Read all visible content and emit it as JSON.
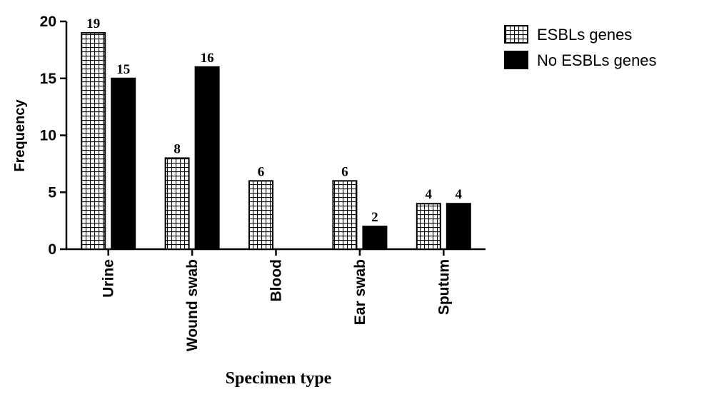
{
  "chart_data": {
    "type": "bar",
    "title": "",
    "xlabel": "Specimen type",
    "ylabel": "Frequency",
    "ylim": [
      0,
      20
    ],
    "yticks": [
      0,
      5,
      10,
      15,
      20
    ],
    "categories": [
      "Urine",
      "Wound swab",
      "Blood",
      "Ear swab",
      "Sputum"
    ],
    "series": [
      {
        "name": "ESBLs genes",
        "pattern": "grid",
        "color": "#000000",
        "values": [
          19,
          8,
          6,
          6,
          4
        ],
        "labels": [
          "19",
          "8",
          "6",
          "6",
          "4"
        ]
      },
      {
        "name": "No ESBLs genes",
        "pattern": "solid",
        "color": "#000000",
        "values": [
          15,
          16,
          0,
          2,
          4
        ],
        "labels": [
          "15",
          "16",
          "",
          "2",
          "4"
        ]
      }
    ],
    "grid": false,
    "legend_position": "top-right"
  }
}
